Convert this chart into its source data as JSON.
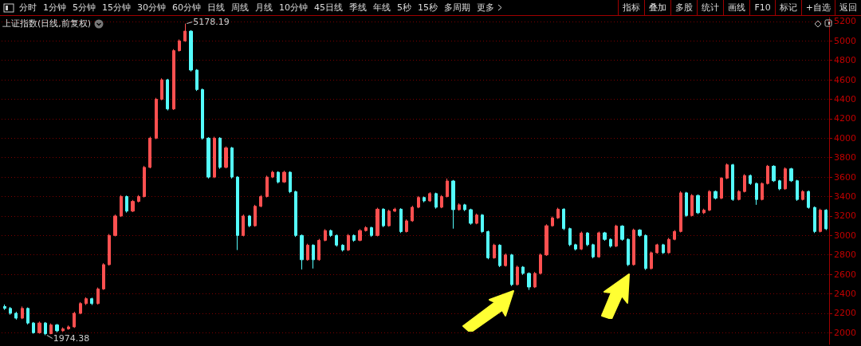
{
  "chart_data": {
    "type": "candlestick",
    "title": "上证指数(日线,前复权)",
    "annotations": [
      "分时",
      "1分钟",
      "5分钟",
      "15分钟",
      "30分钟",
      "60分钟",
      "日线",
      "周线",
      "月线",
      "10分钟",
      "45日线",
      "季线",
      "年线",
      "5秒",
      "15秒",
      "多周期",
      "更多",
      "指标",
      "叠加",
      "多股",
      "统计",
      "画线",
      "F10",
      "标记",
      "+自选",
      "返回",
      "5178.19",
      "1974.38"
    ],
    "categories": [
      null,
      null,
      null,
      null,
      null,
      null,
      null,
      null,
      null,
      null,
      null,
      null,
      null,
      null,
      null,
      null,
      null,
      null,
      null,
      null,
      null,
      null,
      null,
      null,
      null,
      null,
      null,
      null,
      null,
      null,
      null,
      null,
      null,
      null,
      null,
      null,
      null,
      null,
      null,
      null,
      null,
      null,
      null,
      null,
      null,
      null,
      null,
      null,
      null,
      null,
      null,
      null,
      null,
      null,
      null,
      null,
      null,
      null,
      null,
      null,
      null,
      null,
      null,
      null,
      null,
      null,
      null,
      null,
      null,
      null,
      null,
      null,
      null,
      null,
      null,
      null,
      null,
      null,
      null,
      null,
      null,
      null,
      null,
      null,
      null,
      null,
      null,
      null,
      null,
      null,
      null,
      null,
      null,
      null,
      null,
      null,
      null,
      null,
      null,
      null,
      null,
      null,
      null,
      null,
      null,
      null,
      null,
      null,
      null,
      null,
      null,
      null,
      null,
      null,
      null,
      null,
      null,
      null,
      null,
      null,
      null,
      null,
      null,
      null,
      null,
      null,
      null,
      null,
      null,
      null,
      null,
      null,
      null,
      null,
      null,
      null,
      null,
      null,
      null,
      null,
      null,
      null
    ],
    "ohlc": [
      [
        2270,
        2290,
        2235,
        2250
      ],
      [
        2250,
        2265,
        2185,
        2200
      ],
      [
        2200,
        2215,
        2135,
        2150
      ],
      [
        2150,
        2270,
        2140,
        2250
      ],
      [
        2250,
        2260,
        2085,
        2100
      ],
      [
        2100,
        2110,
        1990,
        2000
      ],
      [
        2000,
        2115,
        1990,
        2100
      ],
      [
        2100,
        2110,
        1974.38,
        1990
      ],
      [
        1990,
        2095,
        1985,
        2080
      ],
      [
        2080,
        2090,
        2005,
        2020
      ],
      [
        2020,
        2055,
        2010,
        2040
      ],
      [
        2040,
        2075,
        2030,
        2060
      ],
      [
        2060,
        2215,
        2050,
        2200
      ],
      [
        2200,
        2315,
        2190,
        2300
      ],
      [
        2300,
        2365,
        2285,
        2350
      ],
      [
        2350,
        2360,
        2285,
        2300
      ],
      [
        2300,
        2465,
        2290,
        2450
      ],
      [
        2450,
        2715,
        2440,
        2700
      ],
      [
        2700,
        3015,
        2690,
        3000
      ],
      [
        3000,
        3215,
        2990,
        3200
      ],
      [
        3200,
        3415,
        3190,
        3400
      ],
      [
        3400,
        3410,
        3235,
        3250
      ],
      [
        3250,
        3365,
        3240,
        3350
      ],
      [
        3350,
        3415,
        3340,
        3400
      ],
      [
        3400,
        3715,
        3390,
        3700
      ],
      [
        3700,
        4015,
        3690,
        4000
      ],
      [
        4000,
        4415,
        3990,
        4400
      ],
      [
        4400,
        4615,
        4390,
        4600
      ],
      [
        4600,
        4610,
        4285,
        4300
      ],
      [
        4300,
        4915,
        4290,
        4900
      ],
      [
        4900,
        5015,
        4890,
        5000
      ],
      [
        5000,
        5178.19,
        4990,
        5100
      ],
      [
        5100,
        5110,
        4685,
        4700
      ],
      [
        4700,
        4710,
        4485,
        4500
      ],
      [
        4500,
        4510,
        3985,
        4000
      ],
      [
        4000,
        4010,
        3585,
        3600
      ],
      [
        3600,
        4015,
        3590,
        4000
      ],
      [
        4000,
        4010,
        3685,
        3700
      ],
      [
        3700,
        3915,
        3690,
        3900
      ],
      [
        3900,
        3910,
        3585,
        3600
      ],
      [
        3600,
        3610,
        2850,
        3000
      ],
      [
        3000,
        3215,
        2990,
        3200
      ],
      [
        3200,
        3210,
        3085,
        3100
      ],
      [
        3100,
        3315,
        3090,
        3300
      ],
      [
        3300,
        3415,
        3290,
        3400
      ],
      [
        3400,
        3615,
        3390,
        3600
      ],
      [
        3600,
        3665,
        3590,
        3650
      ],
      [
        3650,
        3660,
        3535,
        3550
      ],
      [
        3550,
        3665,
        3540,
        3650
      ],
      [
        3650,
        3660,
        3435,
        3450
      ],
      [
        3450,
        3460,
        2985,
        3000
      ],
      [
        3000,
        3010,
        2650,
        2750
      ],
      [
        2750,
        2915,
        2740,
        2900
      ],
      [
        2900,
        2910,
        2660,
        2750
      ],
      [
        2750,
        2965,
        2740,
        2950
      ],
      [
        2950,
        3065,
        2940,
        3050
      ],
      [
        3050,
        3060,
        2985,
        3000
      ],
      [
        3000,
        3010,
        2885,
        2900
      ],
      [
        2900,
        2910,
        2835,
        2850
      ],
      [
        2850,
        3015,
        2840,
        3000
      ],
      [
        3000,
        3010,
        2935,
        2950
      ],
      [
        2950,
        3065,
        2940,
        3050
      ],
      [
        3050,
        3095,
        3040,
        3080
      ],
      [
        3080,
        3090,
        2985,
        3000
      ],
      [
        3000,
        3285,
        2990,
        3270
      ],
      [
        3270,
        3280,
        3085,
        3100
      ],
      [
        3100,
        3265,
        3090,
        3250
      ],
      [
        3250,
        3285,
        3240,
        3270
      ],
      [
        3270,
        3280,
        3025,
        3040
      ],
      [
        3040,
        3165,
        3030,
        3150
      ],
      [
        3150,
        3305,
        3140,
        3290
      ],
      [
        3290,
        3405,
        3280,
        3390
      ],
      [
        3390,
        3400,
        3340,
        3355
      ],
      [
        3355,
        3445,
        3345,
        3430
      ],
      [
        3430,
        3440,
        3275,
        3290
      ],
      [
        3290,
        3415,
        3280,
        3400
      ],
      [
        3400,
        3585,
        3390,
        3560
      ],
      [
        3560,
        3570,
        3070,
        3265
      ],
      [
        3265,
        3330,
        3255,
        3315
      ],
      [
        3315,
        3325,
        3250,
        3265
      ],
      [
        3265,
        3275,
        3110,
        3125
      ],
      [
        3125,
        3225,
        3115,
        3210
      ],
      [
        3210,
        3220,
        3025,
        3040
      ],
      [
        3040,
        3050,
        2755,
        2770
      ],
      [
        2770,
        2915,
        2760,
        2900
      ],
      [
        2900,
        2910,
        2675,
        2690
      ],
      [
        2690,
        2815,
        2680,
        2800
      ],
      [
        2800,
        2810,
        2480,
        2495
      ],
      [
        2495,
        2690,
        2485,
        2675
      ],
      [
        2675,
        2685,
        2595,
        2610
      ],
      [
        2610,
        2620,
        2440,
        2470
      ],
      [
        2470,
        2625,
        2460,
        2610
      ],
      [
        2610,
        2815,
        2600,
        2800
      ],
      [
        2800,
        3115,
        2790,
        3100
      ],
      [
        3100,
        3195,
        3090,
        3180
      ],
      [
        3180,
        3285,
        3170,
        3270
      ],
      [
        3270,
        3280,
        3055,
        3070
      ],
      [
        3070,
        3080,
        2890,
        2905
      ],
      [
        2905,
        2915,
        2845,
        2860
      ],
      [
        2860,
        3040,
        2850,
        3025
      ],
      [
        3025,
        3035,
        2890,
        2905
      ],
      [
        2905,
        2915,
        2765,
        2780
      ],
      [
        2780,
        3040,
        2770,
        3027
      ],
      [
        3027,
        3037,
        2945,
        2960
      ],
      [
        2960,
        2970,
        2875,
        2890
      ],
      [
        2890,
        3110,
        2880,
        3096
      ],
      [
        3096,
        3106,
        2945,
        2960
      ],
      [
        2960,
        2970,
        2685,
        2700
      ],
      [
        2700,
        3070,
        2690,
        3055
      ],
      [
        3055,
        3065,
        2985,
        3000
      ],
      [
        3000,
        3010,
        2645,
        2660
      ],
      [
        2660,
        2835,
        2650,
        2822
      ],
      [
        2822,
        2915,
        2812,
        2904
      ],
      [
        2904,
        2914,
        2810,
        2822
      ],
      [
        2822,
        2975,
        2812,
        2960
      ],
      [
        2960,
        3055,
        2950,
        3041
      ],
      [
        3041,
        3455,
        3031,
        3438
      ],
      [
        3438,
        3448,
        3190,
        3205
      ],
      [
        3205,
        3425,
        3195,
        3411
      ],
      [
        3411,
        3421,
        3220,
        3233
      ],
      [
        3233,
        3275,
        3220,
        3260
      ],
      [
        3260,
        3465,
        3250,
        3452
      ],
      [
        3452,
        3462,
        3370,
        3383
      ],
      [
        3383,
        3600,
        3373,
        3589
      ],
      [
        3589,
        3740,
        3579,
        3726
      ],
      [
        3726,
        3736,
        3355,
        3370
      ],
      [
        3370,
        3465,
        3360,
        3452
      ],
      [
        3452,
        3630,
        3442,
        3616
      ],
      [
        3616,
        3626,
        3520,
        3534
      ],
      [
        3534,
        3544,
        3315,
        3370
      ],
      [
        3370,
        3545,
        3360,
        3534
      ],
      [
        3534,
        3725,
        3524,
        3712
      ],
      [
        3712,
        3722,
        3550,
        3562
      ],
      [
        3562,
        3572,
        3465,
        3479
      ],
      [
        3479,
        3700,
        3469,
        3685
      ],
      [
        3685,
        3695,
        3550,
        3562
      ],
      [
        3562,
        3572,
        3355,
        3370
      ],
      [
        3370,
        3465,
        3360,
        3452
      ],
      [
        3452,
        3462,
        3275,
        3288
      ],
      [
        3288,
        3298,
        3025,
        3041
      ],
      [
        3041,
        3275,
        3031,
        3260
      ],
      [
        3260,
        3270,
        3055,
        3068
      ]
    ],
    "colors": [
      "#54fcfc",
      "#54fcfc",
      "#54fcfc",
      "#ff5050",
      "#54fcfc",
      "#54fcfc",
      "#ff5050",
      "#54fcfc",
      "#ff5050",
      "#54fcfc",
      "#ff5050",
      "#ff5050",
      "#ff5050",
      "#ff5050",
      "#ff5050",
      "#54fcfc",
      "#ff5050",
      "#ff5050",
      "#ff5050",
      "#ff5050",
      "#ff5050",
      "#54fcfc",
      "#ff5050",
      "#ff5050",
      "#ff5050",
      "#ff5050",
      "#ff5050",
      "#ff5050",
      "#54fcfc",
      "#ff5050",
      "#ff5050",
      "#ff5050",
      "#54fcfc",
      "#54fcfc",
      "#54fcfc",
      "#54fcfc",
      "#ff5050",
      "#54fcfc",
      "#ff5050",
      "#54fcfc",
      "#54fcfc",
      "#ff5050",
      "#54fcfc",
      "#ff5050",
      "#ff5050",
      "#ff5050",
      "#ff5050",
      "#54fcfc",
      "#ff5050",
      "#54fcfc",
      "#54fcfc",
      "#54fcfc",
      "#ff5050",
      "#54fcfc",
      "#ff5050",
      "#ff5050",
      "#54fcfc",
      "#54fcfc",
      "#54fcfc",
      "#ff5050",
      "#54fcfc",
      "#ff5050",
      "#ff5050",
      "#54fcfc",
      "#ff5050",
      "#54fcfc",
      "#ff5050",
      "#ff5050",
      "#54fcfc",
      "#ff5050",
      "#ff5050",
      "#ff5050",
      "#54fcfc",
      "#ff5050",
      "#54fcfc",
      "#ff5050",
      "#ff5050",
      "#54fcfc",
      "#ff5050",
      "#54fcfc",
      "#54fcfc",
      "#ff5050",
      "#54fcfc",
      "#54fcfc",
      "#ff5050",
      "#54fcfc",
      "#ff5050",
      "#54fcfc",
      "#ff5050",
      "#54fcfc",
      "#54fcfc",
      "#ff5050",
      "#ff5050",
      "#ff5050",
      "#ff5050",
      "#ff5050",
      "#54fcfc",
      "#54fcfc",
      "#54fcfc",
      "#ff5050",
      "#54fcfc",
      "#54fcfc",
      "#ff5050",
      "#54fcfc",
      "#54fcfc",
      "#ff5050",
      "#54fcfc",
      "#54fcfc",
      "#ff5050",
      "#54fcfc",
      "#54fcfc",
      "#ff5050",
      "#ff5050",
      "#54fcfc",
      "#ff5050",
      "#ff5050",
      "#ff5050",
      "#54fcfc",
      "#ff5050",
      "#54fcfc",
      "#ff5050",
      "#ff5050",
      "#54fcfc",
      "#ff5050",
      "#ff5050",
      "#54fcfc",
      "#ff5050",
      "#ff5050",
      "#54fcfc",
      "#54fcfc",
      "#ff5050",
      "#ff5050",
      "#54fcfc",
      "#54fcfc",
      "#ff5050",
      "#54fcfc",
      "#54fcfc",
      "#ff5050",
      "#54fcfc",
      "#54fcfc",
      "#ff5050",
      "#54fcfc"
    ],
    "ylim": [
      1880,
      5240
    ],
    "yticks": [
      2000,
      2200,
      2400,
      2600,
      2800,
      3000,
      3200,
      3400,
      3600,
      3800,
      4000,
      4200,
      4400,
      4600,
      4800,
      5000,
      5200
    ],
    "grid": "y",
    "tick_labels": "y"
  }
}
